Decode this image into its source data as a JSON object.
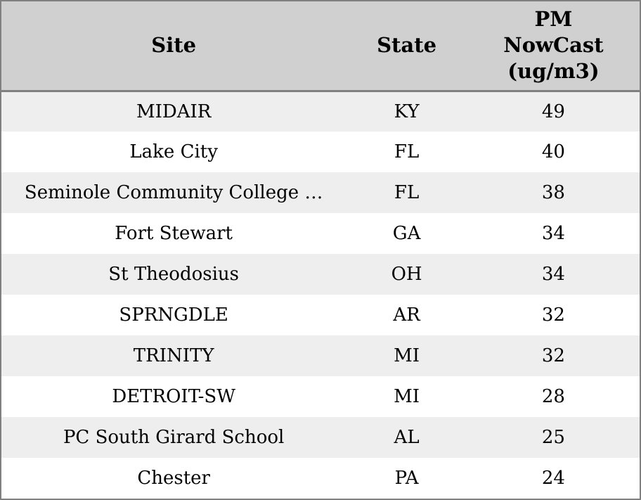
{
  "colors": {
    "border": "#808080",
    "header_bg": "#d0d0d0",
    "stripe_bg": "#eeeeee",
    "row_bg": "#ffffff",
    "text": "#000000"
  },
  "table": {
    "columns": [
      {
        "key": "site",
        "label": "Site"
      },
      {
        "key": "state",
        "label": "State"
      },
      {
        "key": "pm",
        "label": "PM\nNowCast\n(ug/m3)"
      }
    ],
    "rows": [
      {
        "site": "MIDAIR",
        "state": "KY",
        "pm": "49"
      },
      {
        "site": "Lake City",
        "state": "FL",
        "pm": "40"
      },
      {
        "site": "Seminole Community College …",
        "state": "FL",
        "pm": "38"
      },
      {
        "site": "Fort Stewart",
        "state": "GA",
        "pm": "34"
      },
      {
        "site": "St Theodosius",
        "state": "OH",
        "pm": "34"
      },
      {
        "site": "SPRNGDLE",
        "state": "AR",
        "pm": "32"
      },
      {
        "site": "TRINITY",
        "state": "MI",
        "pm": "32"
      },
      {
        "site": "DETROIT-SW",
        "state": "MI",
        "pm": "28"
      },
      {
        "site": "PC South Girard School",
        "state": "AL",
        "pm": "25"
      },
      {
        "site": "Chester",
        "state": "PA",
        "pm": "24"
      }
    ]
  },
  "chart_data": {
    "type": "table",
    "title": "",
    "columns": [
      "Site",
      "State",
      "PM NowCast (ug/m3)"
    ],
    "categories": [
      "MIDAIR",
      "Lake City",
      "Seminole Community College …",
      "Fort Stewart",
      "St Theodosius",
      "SPRNGDLE",
      "TRINITY",
      "DETROIT-SW",
      "PC South Girard School",
      "Chester"
    ],
    "states": [
      "KY",
      "FL",
      "FL",
      "GA",
      "OH",
      "AR",
      "MI",
      "MI",
      "AL",
      "PA"
    ],
    "values": [
      49,
      40,
      38,
      34,
      34,
      32,
      32,
      28,
      25,
      24
    ]
  }
}
